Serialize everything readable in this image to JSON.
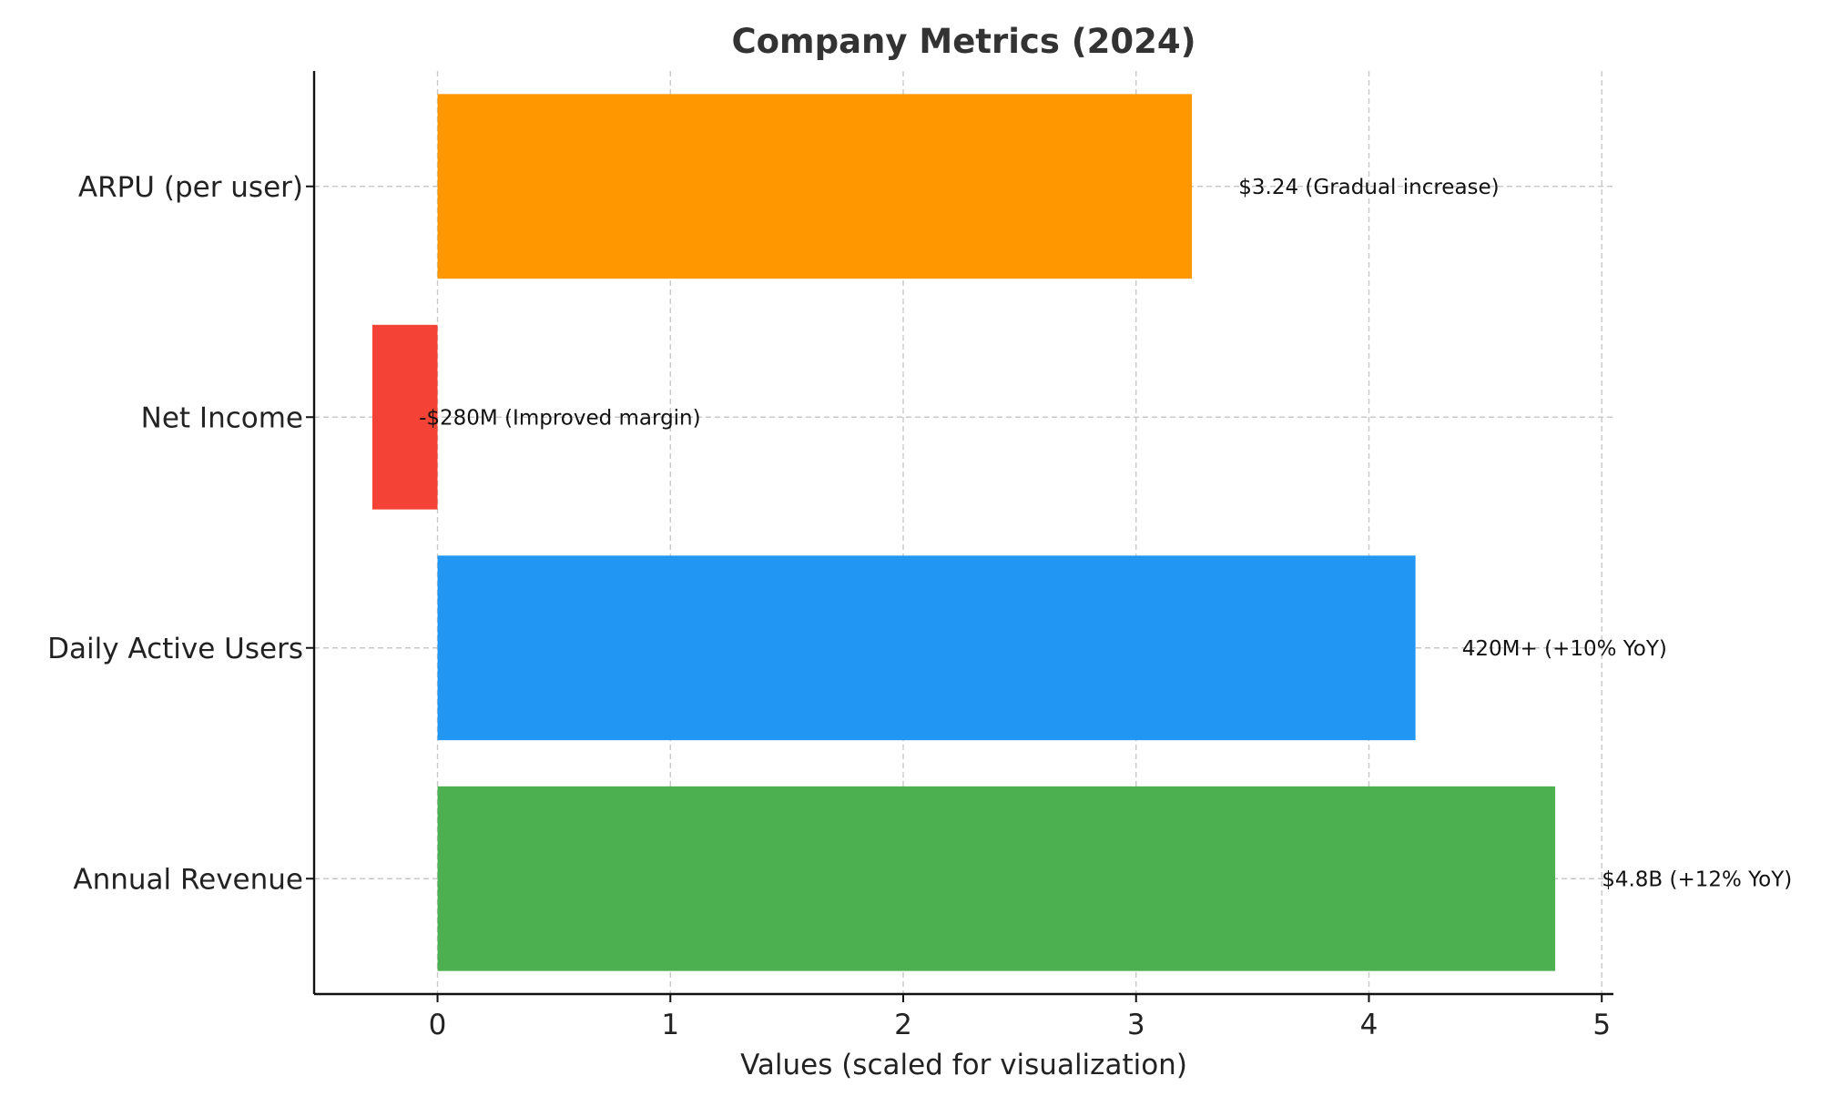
{
  "chart_data": {
    "type": "bar",
    "orientation": "horizontal",
    "title": "Company Metrics (2024)",
    "xlabel": "Values (scaled for visualization)",
    "ylabel": "",
    "xlim": [
      -0.53,
      5.05
    ],
    "xticks": [
      0,
      1,
      2,
      3,
      4,
      5
    ],
    "grid": true,
    "categories": [
      "Annual Revenue",
      "Daily Active Users",
      "Net Income",
      "ARPU (per user)"
    ],
    "values": [
      4.8,
      4.2,
      -0.28,
      3.24
    ],
    "colors": [
      "#4caf50",
      "#2196f3",
      "#f44336",
      "#ff9800"
    ],
    "data_labels": [
      "$4.8B (+12% YoY)",
      "420M+ (+10% YoY)",
      "-$280M (Improved margin)",
      "$3.24 (Gradual increase)"
    ]
  }
}
